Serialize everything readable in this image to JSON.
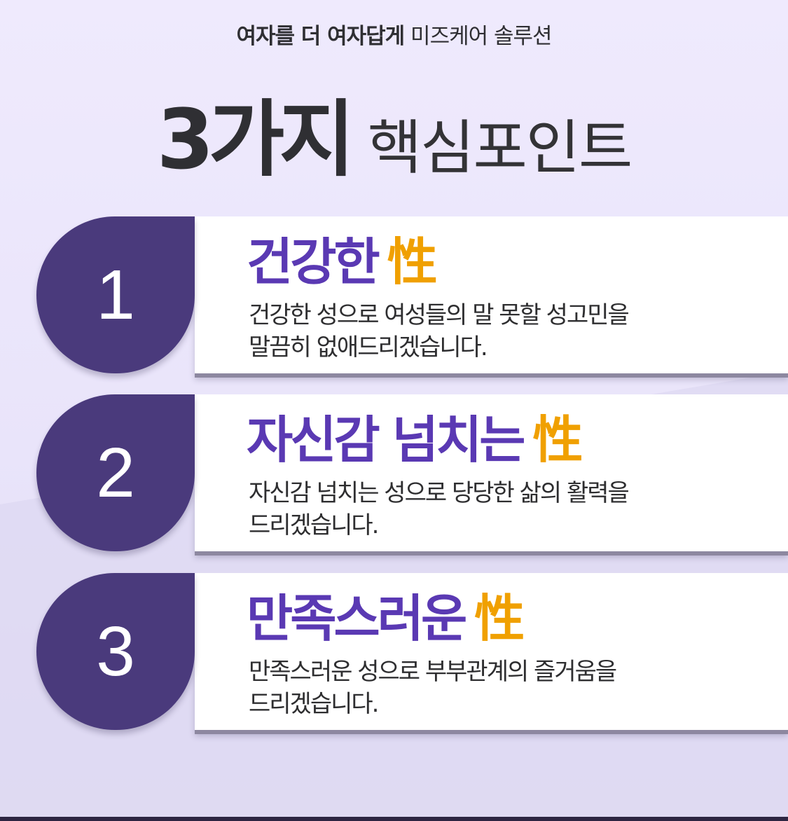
{
  "header": {
    "subtitle_bold": "여자를 더 여자답게",
    "subtitle_light": "미즈케어 솔루션",
    "title_strong": "3가지",
    "title_light": "핵심포인트"
  },
  "points": [
    {
      "number": "1",
      "title": "건강한",
      "highlight": "性",
      "desc_line1": "건강한 성으로 여성들의 말 못할 성고민을",
      "desc_line2": "말끔히 없애드리겠습니다."
    },
    {
      "number": "2",
      "title": "자신감 넘치는",
      "highlight": "性",
      "desc_line1": "자신감 넘치는 성으로 당당한 삶의 활력을",
      "desc_line2": "드리겠습니다."
    },
    {
      "number": "3",
      "title": "만족스러운",
      "highlight": "性",
      "desc_line1": "만족스러운 성으로 부부관계의 즐거움을",
      "desc_line2": "드리겠습니다."
    }
  ],
  "colors": {
    "badge": "#4a3a7c",
    "title_purple": "#5a39b3",
    "highlight_orange": "#f0a000",
    "background": "#ece8fb"
  }
}
